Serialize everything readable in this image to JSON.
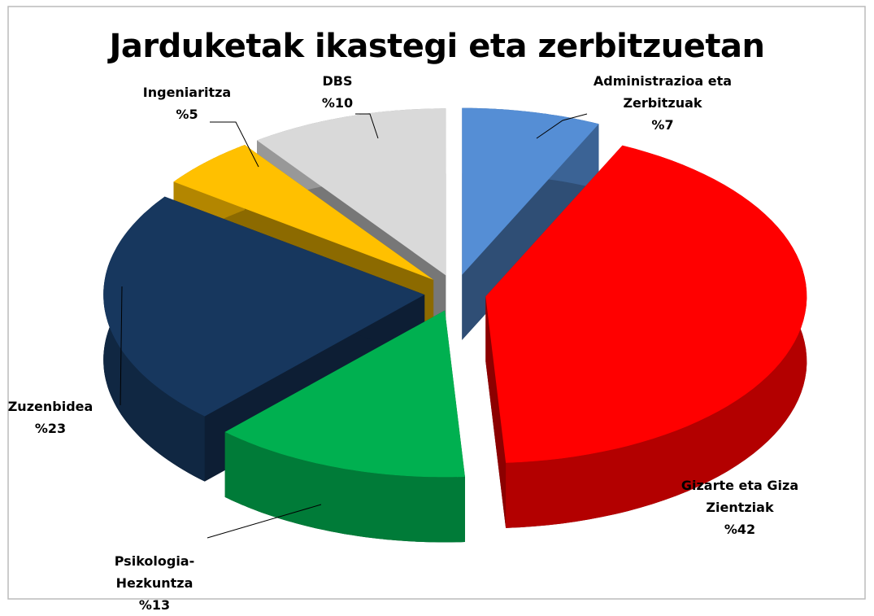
{
  "chart_data": {
    "type": "pie",
    "title": "Jarduketak ikastegi eta zerbitzuetan",
    "categories": [
      "Administrazioa eta Zerbitzuak",
      "Gizarte eta Giza Zientziak",
      "Psikologia-Hezkuntza",
      "Zuzenbidea",
      "Ingeniaritza",
      "DBS"
    ],
    "values": [
      7,
      42,
      13,
      23,
      5,
      10
    ],
    "value_labels": [
      "%7",
      "%42",
      "%13",
      "%23",
      "%5",
      "%10"
    ],
    "colors": [
      "#558ed5",
      "#ff0000",
      "#00b050",
      "#17375e",
      "#ffc000",
      "#d9d9d9"
    ]
  }
}
